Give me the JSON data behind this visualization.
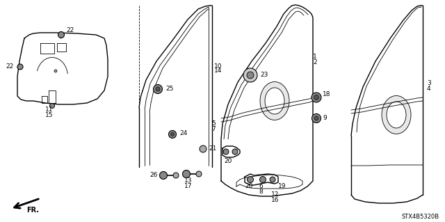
{
  "background": "#ffffff",
  "line_color": "#000000",
  "part_code": "STX4B5320B",
  "lw_main": 1.0,
  "lw_thin": 0.6,
  "lw_thick": 1.3
}
